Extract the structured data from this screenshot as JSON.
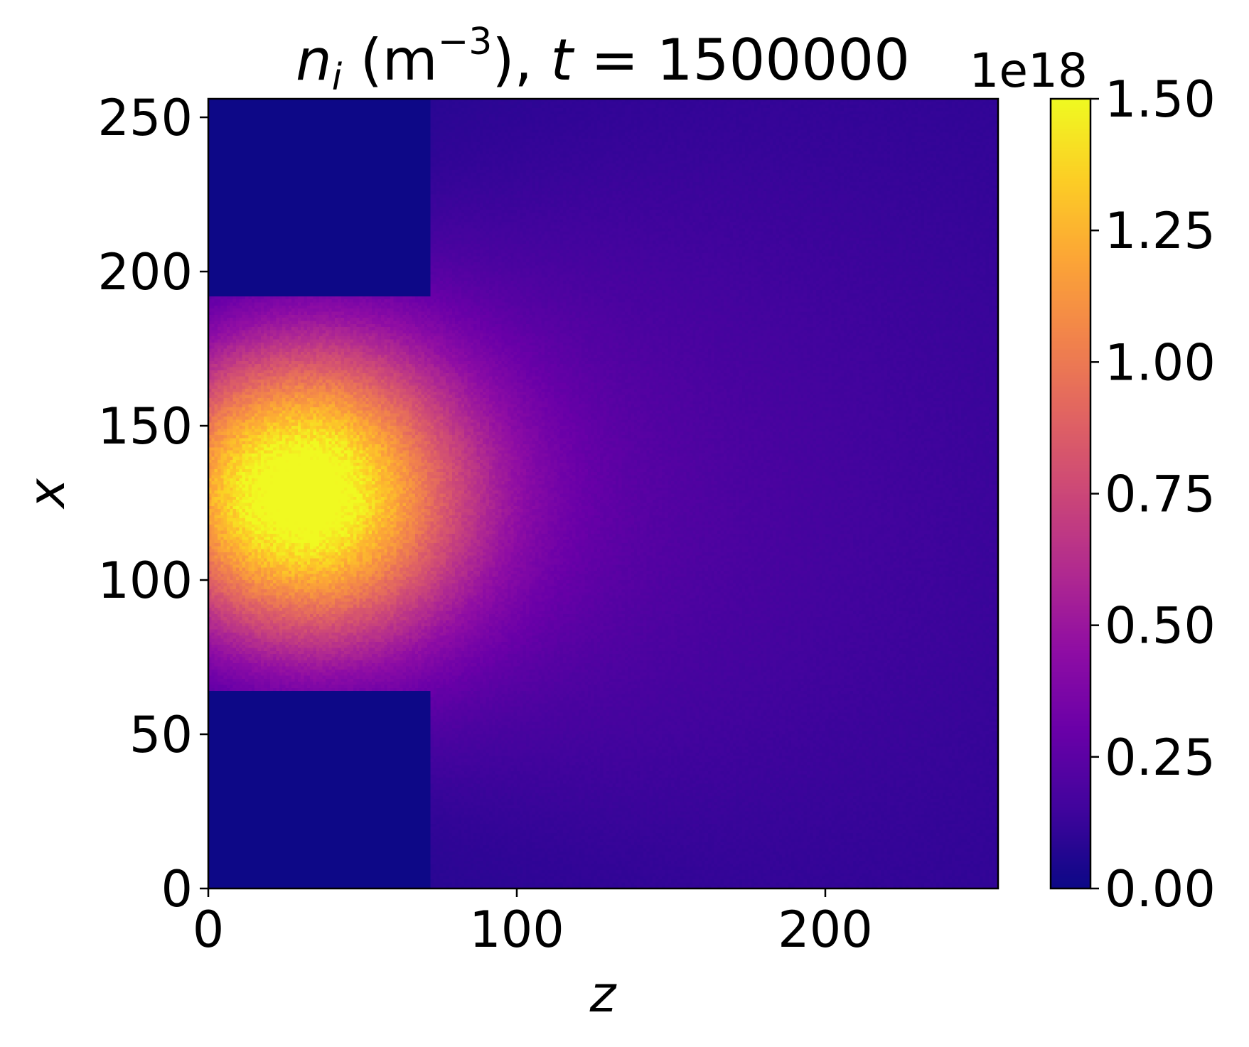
{
  "chart_data": {
    "type": "heatmap",
    "title": {
      "var": "n",
      "sub": "i",
      "unit_open": " (m",
      "unit_sup": "−3",
      "unit_close": "), ",
      "tvar": "t",
      "teq": " = 1500000"
    },
    "xlabel": "z",
    "ylabel": "x",
    "xlim": [
      0,
      256
    ],
    "ylim": [
      0,
      256
    ],
    "xticks": [
      0,
      100,
      200
    ],
    "yticks": [
      0,
      50,
      100,
      150,
      200,
      250
    ],
    "xtick_labels": [
      "0",
      "100",
      "200"
    ],
    "ytick_labels": [
      "0",
      "50",
      "100",
      "150",
      "200",
      "250"
    ],
    "colormap": "plasma",
    "colorbar": {
      "min": 0.0,
      "max": 1.5,
      "ticks": [
        0.0,
        0.25,
        0.5,
        0.75,
        1.0,
        1.25,
        1.5
      ],
      "tick_labels": [
        "0.00",
        "0.25",
        "0.50",
        "0.75",
        "1.00",
        "1.25",
        "1.50"
      ],
      "offset_text": "1e18"
    },
    "field": {
      "description_units": "n_i in units of 1e18 m^-3",
      "background_value": 0.07,
      "peak_value": 1.45,
      "peak_z": 24,
      "peak_x": 128,
      "obstacles": [
        {
          "z_range": [
            0,
            72
          ],
          "x_range": [
            192,
            256
          ],
          "value": 0.0
        },
        {
          "z_range": [
            0,
            72
          ],
          "x_range": [
            0,
            64
          ],
          "value": 0.0
        }
      ]
    },
    "grid": false,
    "legend": "none"
  }
}
